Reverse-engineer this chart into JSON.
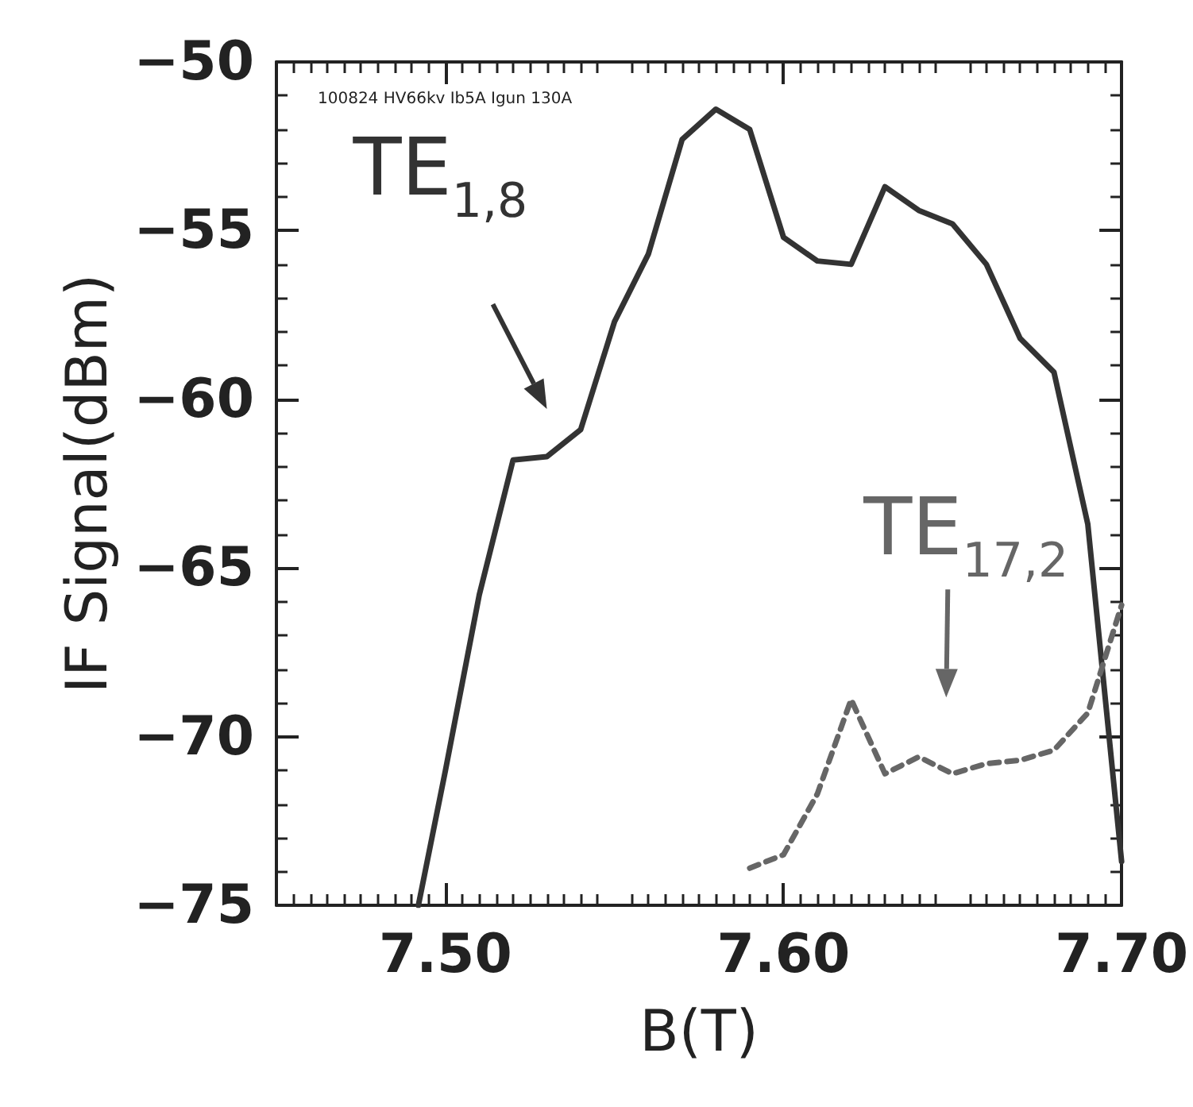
{
  "chart_data": {
    "type": "line",
    "xlabel": "B(T)",
    "ylabel": "IF Signal(dBm)",
    "xlim": [
      7.45,
      7.7
    ],
    "ylim": [
      -75,
      -50
    ],
    "xticks": [
      {
        "value": 7.5,
        "label": "7.50"
      },
      {
        "value": 7.6,
        "label": "7.60"
      },
      {
        "value": 7.7,
        "label": "7.70"
      }
    ],
    "yticks": [
      {
        "value": -75,
        "label": "−75"
      },
      {
        "value": -70,
        "label": "−70"
      },
      {
        "value": -65,
        "label": "−65"
      },
      {
        "value": -60,
        "label": "−60"
      },
      {
        "value": -55,
        "label": "−55"
      },
      {
        "value": -50,
        "label": "−50"
      }
    ],
    "marker": "none",
    "series": [
      {
        "color": "#333333",
        "line_style": "solid",
        "x": [
          7.492,
          7.5,
          7.51,
          7.52,
          7.53,
          7.54,
          7.55,
          7.56,
          7.57,
          7.58,
          7.59,
          7.6,
          7.61,
          7.62,
          7.63,
          7.64,
          7.65,
          7.66,
          7.67,
          7.68,
          7.69,
          7.7
        ],
        "values": [
          -75,
          -71.0,
          -65.8,
          -61.8,
          -61.7,
          -60.9,
          -57.7,
          -55.7,
          -52.3,
          -51.4,
          -52.0,
          -55.2,
          -55.9,
          -56.0,
          -53.7,
          -54.4,
          -54.8,
          -56.0,
          -58.2,
          -59.2,
          -63.7,
          -73.7
        ]
      },
      {
        "color": "#666666",
        "line_style": "dashed",
        "x": [
          7.59,
          7.6,
          7.61,
          7.62,
          7.63,
          7.64,
          7.65,
          7.66,
          7.67,
          7.68,
          7.69,
          7.7
        ],
        "values": [
          -73.9,
          -73.5,
          -71.7,
          -68.9,
          -71.1,
          -70.6,
          -71.1,
          -70.8,
          -70.7,
          -70.4,
          -69.3,
          -66.1
        ]
      }
    ],
    "annotations": [
      "100824 HV66kv Ib5A Igun 130A",
      {
        "text": "TE$_{1,8}$",
        "x": 7.53,
        "y": -61.7
      },
      {
        "text": "TE$_{17,2}$",
        "x": 7.65,
        "y": -71.1
      }
    ]
  }
}
